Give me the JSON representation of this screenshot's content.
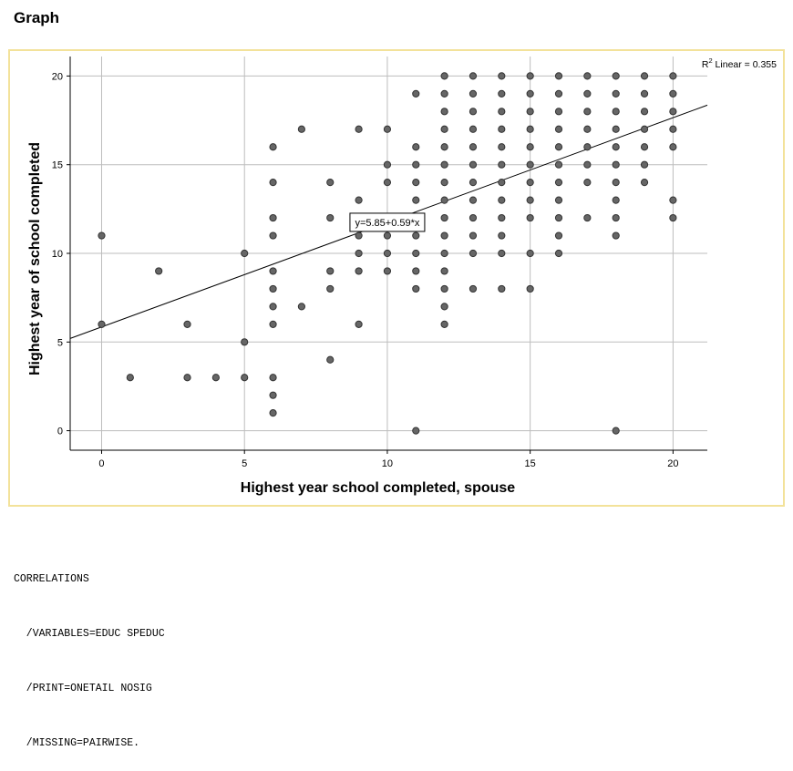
{
  "page": {
    "heading": "Graph"
  },
  "chart_data": {
    "type": "scatter",
    "xlabel": "Highest year school completed, spouse",
    "ylabel": "Highest year of school completed",
    "xlim": [
      -1.1,
      21.2
    ],
    "ylim": [
      -1.1,
      21.1
    ],
    "x_ticks": [
      0,
      5,
      10,
      15,
      20
    ],
    "y_ticks": [
      0,
      5,
      10,
      15,
      20
    ],
    "grid": true,
    "fit_line": {
      "intercept": 5.85,
      "slope": 0.59,
      "label": "y=5.85+0.59*x",
      "label_at_x": 10
    },
    "r2_annotation": {
      "prefix": "R",
      "superscript": "2",
      "text": " Linear = 0.355"
    },
    "marker_color": "#666666",
    "points": [
      [
        0,
        11
      ],
      [
        0,
        6
      ],
      [
        1,
        3
      ],
      [
        2,
        9
      ],
      [
        3,
        6
      ],
      [
        3,
        3
      ],
      [
        4,
        3
      ],
      [
        5,
        10
      ],
      [
        5,
        5
      ],
      [
        5,
        3
      ],
      [
        6,
        16
      ],
      [
        6,
        14
      ],
      [
        6,
        12
      ],
      [
        6,
        11
      ],
      [
        6,
        9
      ],
      [
        6,
        8
      ],
      [
        6,
        7
      ],
      [
        6,
        6
      ],
      [
        6,
        3
      ],
      [
        6,
        2
      ],
      [
        6,
        1
      ],
      [
        7,
        17
      ],
      [
        7,
        7
      ],
      [
        8,
        14
      ],
      [
        8,
        12
      ],
      [
        8,
        9
      ],
      [
        8,
        8
      ],
      [
        8,
        4
      ],
      [
        9,
        17
      ],
      [
        9,
        13
      ],
      [
        9,
        11
      ],
      [
        9,
        10
      ],
      [
        9,
        9
      ],
      [
        9,
        6
      ],
      [
        10,
        17
      ],
      [
        10,
        15
      ],
      [
        10,
        14
      ],
      [
        10,
        12
      ],
      [
        10,
        11
      ],
      [
        10,
        10
      ],
      [
        10,
        9
      ],
      [
        11,
        19
      ],
      [
        11,
        16
      ],
      [
        11,
        15
      ],
      [
        11,
        14
      ],
      [
        11,
        13
      ],
      [
        11,
        12
      ],
      [
        11,
        11
      ],
      [
        11,
        10
      ],
      [
        11,
        9
      ],
      [
        11,
        8
      ],
      [
        11,
        0
      ],
      [
        12,
        20
      ],
      [
        12,
        19
      ],
      [
        12,
        18
      ],
      [
        12,
        17
      ],
      [
        12,
        16
      ],
      [
        12,
        15
      ],
      [
        12,
        14
      ],
      [
        12,
        13
      ],
      [
        12,
        12
      ],
      [
        12,
        11
      ],
      [
        12,
        10
      ],
      [
        12,
        9
      ],
      [
        12,
        8
      ],
      [
        12,
        7
      ],
      [
        12,
        6
      ],
      [
        13,
        20
      ],
      [
        13,
        19
      ],
      [
        13,
        18
      ],
      [
        13,
        17
      ],
      [
        13,
        16
      ],
      [
        13,
        15
      ],
      [
        13,
        14
      ],
      [
        13,
        13
      ],
      [
        13,
        12
      ],
      [
        13,
        11
      ],
      [
        13,
        10
      ],
      [
        13,
        8
      ],
      [
        14,
        20
      ],
      [
        14,
        19
      ],
      [
        14,
        18
      ],
      [
        14,
        17
      ],
      [
        14,
        16
      ],
      [
        14,
        15
      ],
      [
        14,
        14
      ],
      [
        14,
        13
      ],
      [
        14,
        12
      ],
      [
        14,
        11
      ],
      [
        14,
        10
      ],
      [
        14,
        8
      ],
      [
        15,
        20
      ],
      [
        15,
        19
      ],
      [
        15,
        18
      ],
      [
        15,
        17
      ],
      [
        15,
        16
      ],
      [
        15,
        15
      ],
      [
        15,
        14
      ],
      [
        15,
        13
      ],
      [
        15,
        12
      ],
      [
        15,
        10
      ],
      [
        15,
        8
      ],
      [
        16,
        20
      ],
      [
        16,
        19
      ],
      [
        16,
        18
      ],
      [
        16,
        17
      ],
      [
        16,
        16
      ],
      [
        16,
        15
      ],
      [
        16,
        14
      ],
      [
        16,
        13
      ],
      [
        16,
        12
      ],
      [
        16,
        11
      ],
      [
        16,
        10
      ],
      [
        17,
        20
      ],
      [
        17,
        19
      ],
      [
        17,
        18
      ],
      [
        17,
        17
      ],
      [
        17,
        16
      ],
      [
        17,
        15
      ],
      [
        17,
        14
      ],
      [
        17,
        12
      ],
      [
        18,
        20
      ],
      [
        18,
        19
      ],
      [
        18,
        18
      ],
      [
        18,
        17
      ],
      [
        18,
        16
      ],
      [
        18,
        15
      ],
      [
        18,
        14
      ],
      [
        18,
        13
      ],
      [
        18,
        12
      ],
      [
        18,
        11
      ],
      [
        18,
        0
      ],
      [
        19,
        20
      ],
      [
        19,
        19
      ],
      [
        19,
        18
      ],
      [
        19,
        17
      ],
      [
        19,
        16
      ],
      [
        19,
        15
      ],
      [
        19,
        14
      ],
      [
        20,
        20
      ],
      [
        20,
        19
      ],
      [
        20,
        18
      ],
      [
        20,
        17
      ],
      [
        20,
        16
      ],
      [
        20,
        13
      ],
      [
        20,
        12
      ]
    ]
  },
  "syntax": {
    "lines": [
      "CORRELATIONS",
      "  /VARIABLES=EDUC SPEDUC",
      "  /PRINT=ONETAIL NOSIG",
      "  /MISSING=PAIRWISE."
    ]
  }
}
